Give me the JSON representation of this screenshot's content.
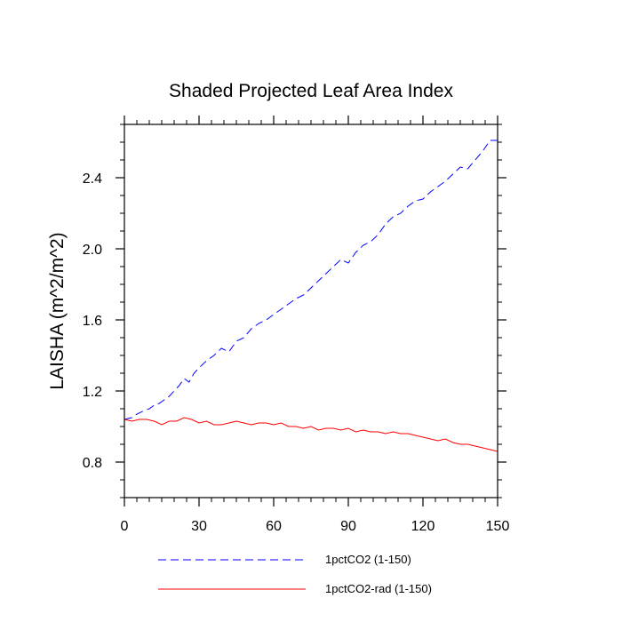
{
  "chart_data": {
    "type": "line",
    "title": "Shaded Projected Leaf Area Index",
    "xlabel": "",
    "ylabel": "LAISHA  (m^2/m^2)",
    "xlim": [
      0,
      150
    ],
    "ylim": [
      0.6,
      2.7
    ],
    "x_ticks": [
      0,
      30,
      60,
      90,
      120,
      150
    ],
    "x_tick_labels": [
      "0",
      "30",
      "60",
      "90",
      "120",
      "150"
    ],
    "x_minor_step": 5,
    "y_ticks": [
      0.8,
      1.2,
      1.6,
      2.0,
      2.4
    ],
    "y_tick_labels": [
      "0.8",
      "1.2",
      "1.6",
      "2.0",
      "2.4"
    ],
    "y_minor_step": 0.1,
    "grid": false,
    "legend_position": "bottom",
    "series": [
      {
        "name": "1pctCO2 (1-150)",
        "color": "#0000ff",
        "dash": "dashed",
        "x": [
          0,
          3,
          5,
          8,
          10,
          12,
          14,
          16,
          18,
          20,
          22,
          24,
          26,
          28,
          30,
          33,
          36,
          39,
          42,
          45,
          48,
          51,
          54,
          57,
          60,
          63,
          66,
          69,
          72,
          75,
          78,
          81,
          84,
          87,
          90,
          93,
          96,
          99,
          102,
          105,
          108,
          111,
          114,
          117,
          120,
          123,
          126,
          129,
          132,
          135,
          138,
          141,
          144,
          147,
          150
        ],
        "values": [
          1.04,
          1.05,
          1.07,
          1.09,
          1.1,
          1.12,
          1.13,
          1.15,
          1.17,
          1.2,
          1.23,
          1.27,
          1.25,
          1.3,
          1.33,
          1.37,
          1.4,
          1.44,
          1.42,
          1.48,
          1.5,
          1.55,
          1.58,
          1.6,
          1.63,
          1.66,
          1.69,
          1.72,
          1.74,
          1.78,
          1.82,
          1.86,
          1.9,
          1.94,
          1.92,
          1.98,
          2.02,
          2.04,
          2.08,
          2.14,
          2.18,
          2.2,
          2.24,
          2.27,
          2.28,
          2.32,
          2.35,
          2.38,
          2.42,
          2.46,
          2.45,
          2.5,
          2.55,
          2.61,
          2.61
        ]
      },
      {
        "name": "1pctCO2-rad (1-150)",
        "color": "#ff0000",
        "dash": "solid",
        "x": [
          0,
          3,
          6,
          9,
          12,
          15,
          18,
          21,
          24,
          27,
          30,
          33,
          36,
          39,
          42,
          45,
          48,
          51,
          54,
          57,
          60,
          63,
          66,
          69,
          72,
          75,
          78,
          81,
          84,
          87,
          90,
          93,
          96,
          99,
          102,
          105,
          108,
          111,
          114,
          117,
          120,
          123,
          126,
          129,
          132,
          135,
          138,
          141,
          144,
          147,
          150
        ],
        "values": [
          1.04,
          1.03,
          1.04,
          1.04,
          1.03,
          1.01,
          1.03,
          1.03,
          1.05,
          1.04,
          1.02,
          1.03,
          1.01,
          1.01,
          1.02,
          1.03,
          1.02,
          1.01,
          1.02,
          1.02,
          1.01,
          1.02,
          1.0,
          1.0,
          0.99,
          1.0,
          0.98,
          0.99,
          0.99,
          0.98,
          0.99,
          0.97,
          0.98,
          0.97,
          0.97,
          0.96,
          0.97,
          0.96,
          0.96,
          0.95,
          0.94,
          0.93,
          0.92,
          0.93,
          0.91,
          0.9,
          0.9,
          0.89,
          0.88,
          0.87,
          0.86
        ]
      }
    ]
  }
}
